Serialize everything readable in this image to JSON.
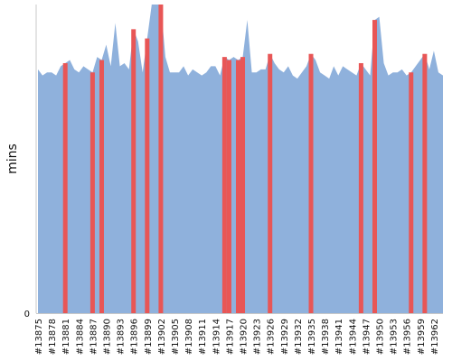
{
  "chart_data": {
    "type": "area",
    "title": "",
    "xlabel": "",
    "ylabel": "mins",
    "y_ticks": [
      {
        "value": 0,
        "label": "0"
      }
    ],
    "ylim": [
      0,
      100
    ],
    "grid": false,
    "legend": "none",
    "builds": [
      "#13875",
      "#13876",
      "#13877",
      "#13878",
      "#13879",
      "#13880",
      "#13881",
      "#13882",
      "#13883",
      "#13884",
      "#13885",
      "#13886",
      "#13887",
      "#13888",
      "#13889",
      "#13890",
      "#13891",
      "#13892",
      "#13893",
      "#13894",
      "#13895",
      "#13896",
      "#13897",
      "#13898",
      "#13899",
      "#13900",
      "#13901",
      "#13902",
      "#13903",
      "#13904",
      "#13905",
      "#13906",
      "#13907",
      "#13908",
      "#13909",
      "#13910",
      "#13911",
      "#13912",
      "#13913",
      "#13914",
      "#13915",
      "#13916",
      "#13917",
      "#13918",
      "#13919",
      "#13920",
      "#13921",
      "#13922",
      "#13923",
      "#13924",
      "#13925",
      "#13926",
      "#13927",
      "#13928",
      "#13929",
      "#13930",
      "#13931",
      "#13932",
      "#13933",
      "#13934",
      "#13935",
      "#13936",
      "#13937",
      "#13938",
      "#13939",
      "#13940",
      "#13941",
      "#13942",
      "#13943",
      "#13944",
      "#13945",
      "#13946",
      "#13947",
      "#13948",
      "#13949",
      "#13950",
      "#13951",
      "#13952",
      "#13953",
      "#13954",
      "#13955",
      "#13956",
      "#13957",
      "#13958",
      "#13959",
      "#13960",
      "#13961",
      "#13962",
      "#13963",
      "#13964"
    ],
    "tick_labels": [
      "#13875",
      "#13878",
      "#13881",
      "#13884",
      "#13887",
      "#13890",
      "#13893",
      "#13896",
      "#13899",
      "#13902",
      "#13905",
      "#13908",
      "#13911",
      "#13914",
      "#13917",
      "#13920",
      "#13923",
      "#13926",
      "#13929",
      "#13932",
      "#13935",
      "#13938",
      "#13941",
      "#13944",
      "#13947",
      "#13950",
      "#13953",
      "#13956",
      "#13959",
      "#13962"
    ],
    "durations": [
      79,
      77,
      78,
      78,
      77,
      80,
      81,
      82,
      79,
      78,
      80,
      79,
      78,
      83,
      82,
      87,
      80,
      94,
      80,
      81,
      79,
      92,
      88,
      78,
      89,
      100,
      100,
      100,
      83,
      78,
      78,
      78,
      80,
      77,
      79,
      78,
      77,
      78,
      80,
      80,
      77,
      83,
      82,
      83,
      82,
      83,
      95,
      78,
      78,
      79,
      79,
      84,
      81,
      79,
      78,
      80,
      77,
      76,
      78,
      80,
      84,
      82,
      78,
      77,
      76,
      80,
      77,
      80,
      79,
      78,
      77,
      81,
      79,
      77,
      95,
      96,
      81,
      77,
      78,
      78,
      79,
      77,
      78,
      80,
      82,
      84,
      79,
      85,
      78,
      77
    ],
    "failed_builds": [
      "#13881",
      "#13887",
      "#13889",
      "#13896",
      "#13899",
      "#13902",
      "#13916",
      "#13917",
      "#13919",
      "#13920",
      "#13926",
      "#13935",
      "#13946",
      "#13949",
      "#13957",
      "#13960"
    ],
    "colors": {
      "area": "#8fb1dc",
      "failed": "#e85656",
      "axis": "#c8c8c8",
      "text": "#111111"
    }
  }
}
